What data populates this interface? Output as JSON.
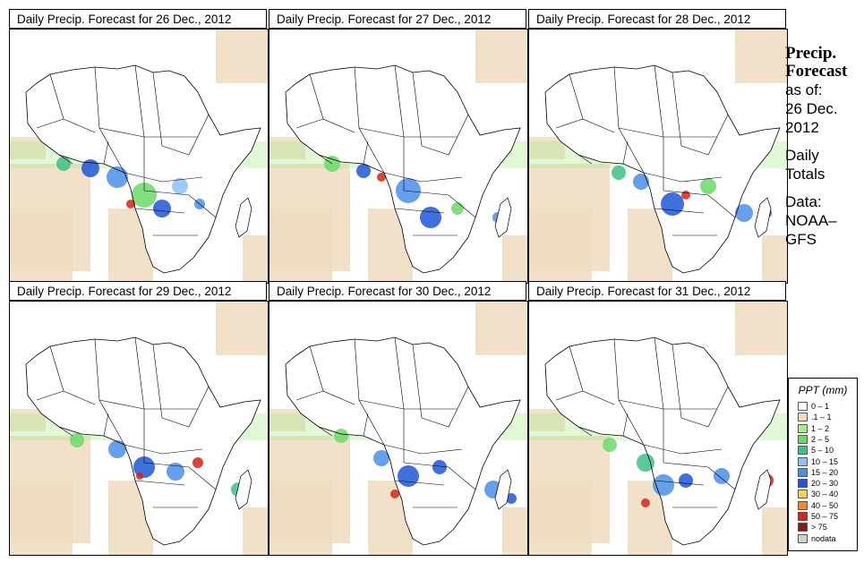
{
  "panels": [
    {
      "title": "Daily Precip. Forecast for  26 Dec., 2012"
    },
    {
      "title": "Daily Precip. Forecast for  27 Dec., 2012"
    },
    {
      "title": "Daily Precip. Forecast for  28 Dec., 2012"
    },
    {
      "title": "Daily Precip. Forecast for  29 Dec., 2012"
    },
    {
      "title": "Daily Precip. Forecast for  30 Dec., 2012"
    },
    {
      "title": "Daily Precip. Forecast for  31 Dec., 2012"
    }
  ],
  "sidebar": {
    "heading1": "Precip.",
    "heading2": "Forecast",
    "asof": "as of:",
    "date1": "26 Dec.",
    "date2": "2012",
    "daily1": "Daily",
    "daily2": "Totals",
    "data1": "Data:",
    "data2": "NOAA–",
    "data3": "GFS"
  },
  "legend": {
    "title": "PPT (mm)",
    "items": [
      {
        "label": "0 – 1",
        "color": "#ffffff"
      },
      {
        "label": ".1 – 1",
        "color": "#efdcc0"
      },
      {
        "label": "1 – 2",
        "color": "#a8ec8c"
      },
      {
        "label": "2 – 5",
        "color": "#6cd96a"
      },
      {
        "label": "5 – 10",
        "color": "#3fbf86"
      },
      {
        "label": "10 – 15",
        "color": "#8cc2f5"
      },
      {
        "label": "15 – 20",
        "color": "#4b8ee8"
      },
      {
        "label": "20 – 30",
        "color": "#1f56d8"
      },
      {
        "label": "30 – 40",
        "color": "#f5d05a"
      },
      {
        "label": "40 – 50",
        "color": "#f08a2a"
      },
      {
        "label": "50 – 75",
        "color": "#d8231a"
      },
      {
        "label": "> 75",
        "color": "#8a1810"
      },
      {
        "label": "nodata",
        "color": "#cfcfcf"
      }
    ]
  }
}
